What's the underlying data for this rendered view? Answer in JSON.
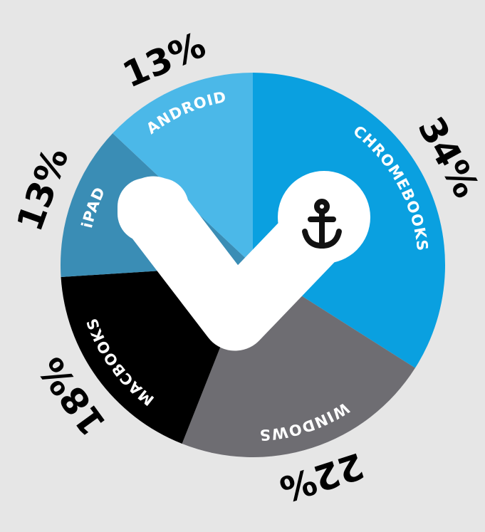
{
  "chart_data": {
    "type": "pie",
    "categories": [
      "CHROMEBOOKS",
      "WINDOWS",
      "MACBOOKS",
      "iPAD",
      "ANDROID"
    ],
    "values": [
      34,
      22,
      18,
      13,
      13
    ],
    "value_labels": [
      "34%",
      "22%",
      "18%",
      "13%",
      "13%"
    ],
    "colors": [
      "#0aa0e0",
      "#6e6d72",
      "#000000",
      "#3a8db5",
      "#4bb8e8"
    ]
  }
}
